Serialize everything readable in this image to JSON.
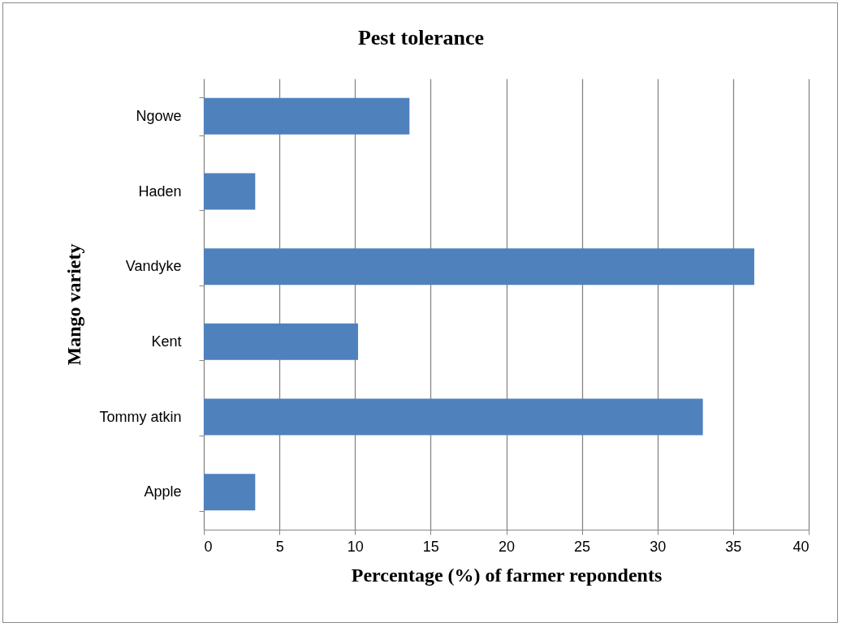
{
  "chart_data": {
    "type": "bar",
    "orientation": "horizontal",
    "title": "Pest tolerance",
    "xlabel": "Percentage (%) of farmer repondents",
    "ylabel": "Mango variety",
    "categories": [
      "Ngowe",
      "Haden",
      "Vandyke",
      "Kent",
      "Tommy atkin",
      "Apple"
    ],
    "values": [
      13.6,
      3.4,
      36.4,
      10.2,
      33.0,
      3.4
    ],
    "color": "#4f81bd",
    "xlim": [
      0,
      40
    ],
    "xticks": [
      0,
      5,
      10,
      15,
      20,
      25,
      30,
      35,
      40
    ],
    "grid": "x"
  }
}
